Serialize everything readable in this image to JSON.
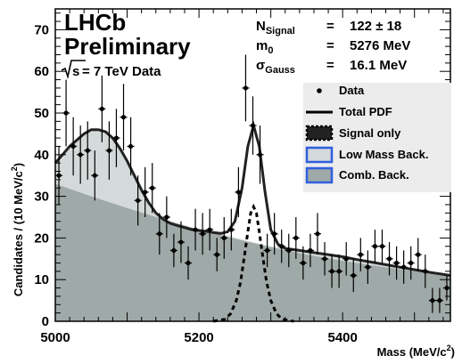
{
  "chart_data": {
    "type": "scatter",
    "experiment": "LHCb",
    "status": "Preliminary",
    "energy_prefix": "s",
    "energy_label": " = 7 TeV Data",
    "xlabel": "Mass (MeV/c",
    "xlabel_sup": "2",
    "xlabel_close": ")",
    "ylabel": "Candidates / (10 MeV/c",
    "ylabel_sup": "2",
    "ylabel_close": ")",
    "xlim": [
      5000,
      5550
    ],
    "ylim": [
      0,
      75
    ],
    "xticks": [
      5000,
      5200,
      5400
    ],
    "yticks": [
      0,
      10,
      20,
      30,
      40,
      50,
      60,
      70
    ],
    "fit_results": [
      {
        "name_main": "N",
        "name_sub": "Signal",
        "eq": "=",
        "value": "122 ± 18"
      },
      {
        "name_main": "m",
        "name_sub": "0",
        "eq": "=",
        "value": "5276 MeV"
      },
      {
        "name_main": "σ",
        "name_sub": "Gauss",
        "eq": "=",
        "value": "16.1 MeV"
      }
    ],
    "legend": {
      "placement": "right",
      "entries": [
        {
          "label": "Data",
          "marker": "point"
        },
        {
          "label": "Total PDF",
          "marker": "line"
        },
        {
          "label": "Signal only",
          "marker": "dashed-box"
        },
        {
          "label": "Low Mass Back.",
          "marker": "fill-light"
        },
        {
          "label": "Comb. Back.",
          "marker": "fill-dark"
        }
      ]
    },
    "colors": {
      "low_mass_fill": "#d4d9d9",
      "comb_fill": "#9fa9a7",
      "legend_box_border": "#2f5fe0",
      "legend_panel": "#ececec"
    },
    "data": [
      {
        "x": 5005,
        "y": 35
      },
      {
        "x": 5015,
        "y": 50
      },
      {
        "x": 5025,
        "y": 42
      },
      {
        "x": 5035,
        "y": 40
      },
      {
        "x": 5045,
        "y": 41
      },
      {
        "x": 5055,
        "y": 35
      },
      {
        "x": 5065,
        "y": 51
      },
      {
        "x": 5075,
        "y": 41
      },
      {
        "x": 5085,
        "y": 44
      },
      {
        "x": 5095,
        "y": 49
      },
      {
        "x": 5105,
        "y": 42
      },
      {
        "x": 5115,
        "y": 29
      },
      {
        "x": 5125,
        "y": 31
      },
      {
        "x": 5135,
        "y": 32
      },
      {
        "x": 5145,
        "y": 21
      },
      {
        "x": 5155,
        "y": 25
      },
      {
        "x": 5165,
        "y": 17
      },
      {
        "x": 5175,
        "y": 19
      },
      {
        "x": 5185,
        "y": 14
      },
      {
        "x": 5195,
        "y": 22
      },
      {
        "x": 5205,
        "y": 21
      },
      {
        "x": 5215,
        "y": 22
      },
      {
        "x": 5225,
        "y": 16
      },
      {
        "x": 5235,
        "y": 20
      },
      {
        "x": 5245,
        "y": 22
      },
      {
        "x": 5255,
        "y": 31
      },
      {
        "x": 5265,
        "y": 56
      },
      {
        "x": 5275,
        "y": 47
      },
      {
        "x": 5285,
        "y": 40
      },
      {
        "x": 5295,
        "y": 17
      },
      {
        "x": 5305,
        "y": 21
      },
      {
        "x": 5315,
        "y": 18
      },
      {
        "x": 5325,
        "y": 17
      },
      {
        "x": 5335,
        "y": 20
      },
      {
        "x": 5345,
        "y": 14
      },
      {
        "x": 5355,
        "y": 17
      },
      {
        "x": 5365,
        "y": 21
      },
      {
        "x": 5375,
        "y": 15
      },
      {
        "x": 5385,
        "y": 12
      },
      {
        "x": 5395,
        "y": 12
      },
      {
        "x": 5405,
        "y": 15
      },
      {
        "x": 5415,
        "y": 11
      },
      {
        "x": 5425,
        "y": 16
      },
      {
        "x": 5435,
        "y": 13
      },
      {
        "x": 5445,
        "y": 18
      },
      {
        "x": 5455,
        "y": 18
      },
      {
        "x": 5465,
        "y": 15
      },
      {
        "x": 5475,
        "y": 14
      },
      {
        "x": 5485,
        "y": 13
      },
      {
        "x": 5495,
        "y": 14
      },
      {
        "x": 5505,
        "y": 16
      },
      {
        "x": 5515,
        "y": 12
      },
      {
        "x": 5525,
        "y": 5
      },
      {
        "x": 5535,
        "y": 5
      },
      {
        "x": 5545,
        "y": 8
      }
    ],
    "error": [
      7,
      8,
      7,
      7,
      7,
      6,
      8,
      7,
      7,
      8,
      7,
      6,
      6,
      6,
      5,
      5,
      4,
      5,
      4,
      5,
      5,
      5,
      4,
      5,
      5,
      6,
      8,
      7,
      7,
      4,
      5,
      4,
      4,
      5,
      4,
      4,
      5,
      4,
      4,
      4,
      4,
      4,
      4,
      4,
      4,
      4,
      4,
      4,
      4,
      4,
      4,
      4,
      3,
      3,
      3
    ],
    "curves": {
      "total_pdf": [
        {
          "x": 5000,
          "y": 38
        },
        {
          "x": 5010,
          "y": 40
        },
        {
          "x": 5020,
          "y": 42
        },
        {
          "x": 5030,
          "y": 43.5
        },
        {
          "x": 5040,
          "y": 45
        },
        {
          "x": 5050,
          "y": 46
        },
        {
          "x": 5060,
          "y": 46
        },
        {
          "x": 5070,
          "y": 45.5
        },
        {
          "x": 5080,
          "y": 44
        },
        {
          "x": 5090,
          "y": 41.5
        },
        {
          "x": 5100,
          "y": 38.5
        },
        {
          "x": 5110,
          "y": 35
        },
        {
          "x": 5120,
          "y": 31.5
        },
        {
          "x": 5130,
          "y": 28.5
        },
        {
          "x": 5140,
          "y": 26
        },
        {
          "x": 5150,
          "y": 24.5
        },
        {
          "x": 5160,
          "y": 23.5
        },
        {
          "x": 5170,
          "y": 23
        },
        {
          "x": 5180,
          "y": 22.5
        },
        {
          "x": 5190,
          "y": 22
        },
        {
          "x": 5200,
          "y": 21.8
        },
        {
          "x": 5210,
          "y": 21.6
        },
        {
          "x": 5220,
          "y": 21.3
        },
        {
          "x": 5230,
          "y": 21.1
        },
        {
          "x": 5240,
          "y": 21.5
        },
        {
          "x": 5250,
          "y": 24
        },
        {
          "x": 5260,
          "y": 32
        },
        {
          "x": 5268,
          "y": 42
        },
        {
          "x": 5276,
          "y": 47
        },
        {
          "x": 5284,
          "y": 42
        },
        {
          "x": 5292,
          "y": 31
        },
        {
          "x": 5300,
          "y": 22
        },
        {
          "x": 5310,
          "y": 18.5
        },
        {
          "x": 5320,
          "y": 17.5
        },
        {
          "x": 5340,
          "y": 17
        },
        {
          "x": 5360,
          "y": 16.5
        },
        {
          "x": 5380,
          "y": 16
        },
        {
          "x": 5400,
          "y": 15.5
        },
        {
          "x": 5420,
          "y": 14.8
        },
        {
          "x": 5440,
          "y": 14.2
        },
        {
          "x": 5460,
          "y": 13.6
        },
        {
          "x": 5480,
          "y": 13
        },
        {
          "x": 5500,
          "y": 12.4
        },
        {
          "x": 5520,
          "y": 11.8
        },
        {
          "x": 5550,
          "y": 11
        }
      ],
      "signal_only": [
        {
          "x": 5220,
          "y": 0
        },
        {
          "x": 5236,
          "y": 0.5
        },
        {
          "x": 5244,
          "y": 1.8
        },
        {
          "x": 5252,
          "y": 5
        },
        {
          "x": 5258,
          "y": 9.5
        },
        {
          "x": 5264,
          "y": 16.5
        },
        {
          "x": 5268,
          "y": 21.5
        },
        {
          "x": 5272,
          "y": 26
        },
        {
          "x": 5276,
          "y": 27.5
        },
        {
          "x": 5280,
          "y": 26
        },
        {
          "x": 5284,
          "y": 21.5
        },
        {
          "x": 5288,
          "y": 16.5
        },
        {
          "x": 5294,
          "y": 9.5
        },
        {
          "x": 5300,
          "y": 5
        },
        {
          "x": 5308,
          "y": 1.8
        },
        {
          "x": 5316,
          "y": 0.5
        },
        {
          "x": 5332,
          "y": 0
        }
      ],
      "low_mass_top": [
        {
          "x": 5000,
          "y": 38
        },
        {
          "x": 5010,
          "y": 40
        },
        {
          "x": 5020,
          "y": 42
        },
        {
          "x": 5030,
          "y": 43.5
        },
        {
          "x": 5040,
          "y": 45
        },
        {
          "x": 5050,
          "y": 46
        },
        {
          "x": 5060,
          "y": 46
        },
        {
          "x": 5070,
          "y": 45.5
        },
        {
          "x": 5080,
          "y": 44
        },
        {
          "x": 5090,
          "y": 41.5
        },
        {
          "x": 5100,
          "y": 38.5
        },
        {
          "x": 5110,
          "y": 35
        },
        {
          "x": 5120,
          "y": 31.5
        },
        {
          "x": 5130,
          "y": 28.5
        },
        {
          "x": 5140,
          "y": 26
        },
        {
          "x": 5150,
          "y": 24.5
        },
        {
          "x": 5160,
          "y": 23.5
        },
        {
          "x": 5170,
          "y": 23
        },
        {
          "x": 5180,
          "y": 22.5
        },
        {
          "x": 5190,
          "y": 22
        },
        {
          "x": 5200,
          "y": 21.8
        },
        {
          "x": 5210,
          "y": 21.6
        },
        {
          "x": 5220,
          "y": 21.3
        },
        {
          "x": 5240,
          "y": 20.6
        },
        {
          "x": 5260,
          "y": 19.6
        },
        {
          "x": 5280,
          "y": 18.8
        },
        {
          "x": 5300,
          "y": 18
        },
        {
          "x": 5320,
          "y": 17.5
        },
        {
          "x": 5340,
          "y": 17
        },
        {
          "x": 5360,
          "y": 16.5
        },
        {
          "x": 5380,
          "y": 16
        },
        {
          "x": 5400,
          "y": 15.5
        },
        {
          "x": 5420,
          "y": 14.8
        },
        {
          "x": 5440,
          "y": 14.2
        },
        {
          "x": 5460,
          "y": 13.6
        },
        {
          "x": 5480,
          "y": 13
        },
        {
          "x": 5500,
          "y": 12.4
        },
        {
          "x": 5520,
          "y": 11.8
        },
        {
          "x": 5550,
          "y": 11
        }
      ],
      "comb_top": [
        {
          "x": 5000,
          "y": 33
        },
        {
          "x": 5050,
          "y": 30
        },
        {
          "x": 5100,
          "y": 27.2
        },
        {
          "x": 5150,
          "y": 24.5
        },
        {
          "x": 5200,
          "y": 22
        },
        {
          "x": 5250,
          "y": 19.8
        },
        {
          "x": 5300,
          "y": 17.8
        },
        {
          "x": 5350,
          "y": 16
        },
        {
          "x": 5400,
          "y": 14.5
        },
        {
          "x": 5450,
          "y": 13.2
        },
        {
          "x": 5500,
          "y": 12
        },
        {
          "x": 5550,
          "y": 11
        }
      ]
    }
  }
}
